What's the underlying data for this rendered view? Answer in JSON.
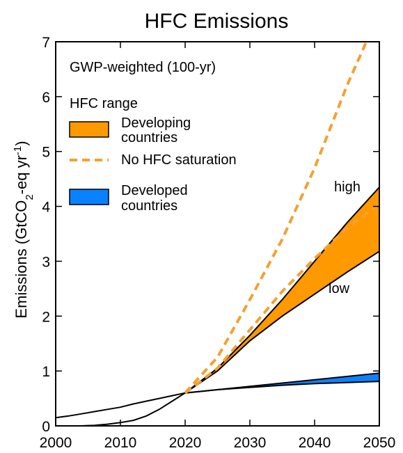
{
  "chart_data": {
    "type": "area",
    "title": "HFC Emissions",
    "subtitle": "GWP-weighted (100-yr)",
    "xlabel": "",
    "ylabel_main": "Emissions (GtCO",
    "ylabel_sub": "2",
    "ylabel_mid": "-eq yr",
    "ylabel_sup": "-1",
    "ylabel_end": ")",
    "xlim": [
      2000,
      2050
    ],
    "ylim": [
      0,
      7
    ],
    "xticks": [
      2000,
      2010,
      2020,
      2030,
      2040,
      2050
    ],
    "yticks": [
      0,
      1,
      2,
      3,
      4,
      5,
      6,
      7
    ],
    "legend": {
      "heading": "HFC range",
      "placement": "top-left",
      "items": [
        {
          "key": "developing",
          "label_line1": "Developing",
          "label_line2": "countries",
          "kind": "band"
        },
        {
          "key": "no_saturation",
          "label_line1": "No HFC saturation",
          "label_line2": "",
          "kind": "dash"
        },
        {
          "key": "developed",
          "label_line1": "Developed",
          "label_line2": "countries",
          "kind": "band"
        }
      ]
    },
    "annotations": {
      "high": "high",
      "low": "low"
    },
    "colors": {
      "developing": "#ff9900",
      "developed": "#0a82ff",
      "no_saturation": "#f5a031",
      "line": "#000000"
    },
    "series": [
      {
        "key": "historical_total",
        "x": [
          2000,
          2002,
          2004,
          2006,
          2008,
          2010,
          2012,
          2014,
          2016,
          2018,
          2020
        ],
        "values": [
          0.15,
          0.18,
          0.22,
          0.26,
          0.3,
          0.34,
          0.4,
          0.45,
          0.5,
          0.55,
          0.6
        ]
      },
      {
        "key": "historical_developing",
        "x": [
          2004,
          2006,
          2008,
          2010,
          2012,
          2014,
          2016,
          2018,
          2020
        ],
        "values": [
          0.0,
          0.01,
          0.03,
          0.06,
          0.1,
          0.18,
          0.3,
          0.45,
          0.6
        ]
      },
      {
        "key": "developing_high",
        "x": [
          2020,
          2025,
          2030,
          2035,
          2040,
          2045,
          2050
        ],
        "values": [
          0.6,
          1.05,
          1.65,
          2.3,
          3.0,
          3.7,
          4.35
        ]
      },
      {
        "key": "developing_low",
        "x": [
          2020,
          2025,
          2030,
          2035,
          2040,
          2045,
          2050
        ],
        "values": [
          0.6,
          1.0,
          1.55,
          2.0,
          2.4,
          2.8,
          3.18
        ]
      },
      {
        "key": "no_saturation_high",
        "x": [
          2020,
          2025,
          2030,
          2035,
          2040,
          2045,
          2048
        ],
        "values": [
          0.6,
          1.25,
          2.3,
          3.4,
          4.7,
          6.2,
          7.0
        ]
      },
      {
        "key": "no_saturation_low",
        "x": [
          2020,
          2025,
          2030,
          2035,
          2040,
          2045,
          2050
        ],
        "values": [
          0.6,
          1.05,
          1.75,
          2.45,
          3.05,
          3.6,
          4.05
        ]
      },
      {
        "key": "developed_high",
        "x": [
          2020,
          2025,
          2030,
          2035,
          2040,
          2045,
          2050
        ],
        "values": [
          0.6,
          0.66,
          0.72,
          0.78,
          0.84,
          0.9,
          0.96
        ]
      },
      {
        "key": "developed_low",
        "x": [
          2020,
          2025,
          2030,
          2035,
          2040,
          2045,
          2050
        ],
        "values": [
          0.6,
          0.66,
          0.7,
          0.74,
          0.77,
          0.79,
          0.81
        ]
      }
    ]
  }
}
